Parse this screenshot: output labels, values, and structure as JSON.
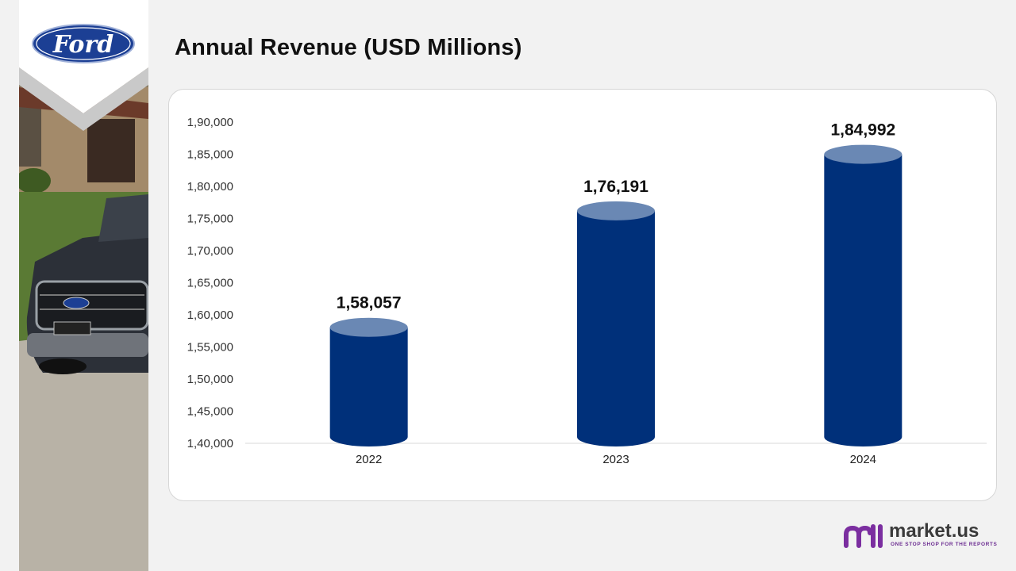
{
  "header": {
    "title": "Annual Revenue (USD Millions)"
  },
  "logo": {
    "text": "Ford",
    "colors": {
      "oval": "#1c3f94",
      "text": "#ffffff"
    }
  },
  "brand": {
    "name": "market.us",
    "tagline": "ONE STOP SHOP FOR THE REPORTS",
    "colors": {
      "purple": "#7b2ea0",
      "text": "#3a3a3a"
    }
  },
  "chart_data": {
    "type": "bar",
    "title": "Annual Revenue (USD Millions)",
    "categories": [
      "2022",
      "2023",
      "2024"
    ],
    "values": [
      158057,
      176191,
      184992
    ],
    "value_labels": [
      "1,58,057",
      "1,76,191",
      "1,84,992"
    ],
    "ylim": [
      140000,
      190000
    ],
    "ytick_labels": [
      "1,40,000",
      "1,45,000",
      "1,50,000",
      "1,55,000",
      "1,60,000",
      "1,65,000",
      "1,70,000",
      "1,75,000",
      "1,80,000",
      "1,85,000",
      "1,90,000"
    ],
    "bar_style": "cylinder",
    "colors": {
      "bar": "#00307a",
      "bar_top": "#6a88b4"
    },
    "grid": false,
    "legend": "none"
  }
}
